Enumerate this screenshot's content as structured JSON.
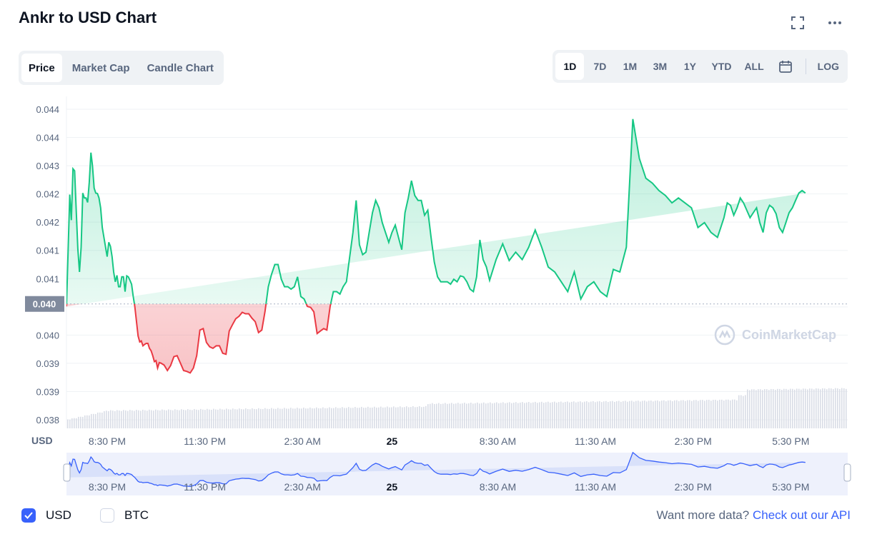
{
  "header": {
    "title": "Ankr to USD Chart"
  },
  "tabs": [
    {
      "label": "Price",
      "active": true
    },
    {
      "label": "Market Cap",
      "active": false
    },
    {
      "label": "Candle Chart",
      "active": false
    }
  ],
  "ranges": [
    {
      "label": "1D",
      "active": true
    },
    {
      "label": "7D",
      "active": false
    },
    {
      "label": "1M",
      "active": false
    },
    {
      "label": "3M",
      "active": false
    },
    {
      "label": "1Y",
      "active": false
    },
    {
      "label": "YTD",
      "active": false
    },
    {
      "label": "ALL",
      "active": false
    }
  ],
  "log_label": "LOG",
  "watermark": "CoinMarketCap",
  "footer": {
    "usd_label": "USD",
    "btc_label": "BTC",
    "usd_checked": true,
    "btc_checked": false,
    "more_text": "Want more data?",
    "api_link": "Check out our API"
  },
  "colors": {
    "up": "#16c784",
    "down": "#ea3943",
    "accent": "#3861fb"
  },
  "chart_data": {
    "type": "line",
    "currency_label": "USD",
    "y_tick_labels": [
      "0.044",
      "0.044",
      "0.043",
      "0.042",
      "0.042",
      "0.041",
      "0.041",
      "0.040",
      "0.040",
      "0.039",
      "0.039",
      "0.038"
    ],
    "ylim": [
      0.0378,
      0.0441
    ],
    "reference_price": 0.04015,
    "reference_label": "0.040",
    "x_tick_labels": [
      "8:30 PM",
      "11:30 PM",
      "2:30 AM",
      "25",
      "8:30 AM",
      "11:30 AM",
      "2:30 PM",
      "5:30 PM"
    ],
    "x_tick_hours": [
      1.25,
      4.25,
      7.25,
      10.0,
      13.25,
      16.25,
      19.25,
      22.25
    ],
    "x_range_hours": [
      0,
      24
    ],
    "price_hours": [
      0,
      0.1,
      0.15,
      0.2,
      0.25,
      0.3,
      0.35,
      0.4,
      0.45,
      0.5,
      0.55,
      0.6,
      0.65,
      0.7,
      0.75,
      0.8,
      0.85,
      0.9,
      0.95,
      1.0,
      1.05,
      1.1,
      1.15,
      1.2,
      1.25,
      1.3,
      1.35,
      1.4,
      1.45,
      1.5,
      1.55,
      1.6,
      1.65,
      1.7,
      1.75,
      1.8,
      1.85,
      1.9,
      1.95,
      2.0,
      2.05,
      2.1,
      2.15,
      2.2,
      2.25,
      2.3,
      2.35,
      2.4,
      2.45,
      2.5,
      2.55,
      2.6,
      2.65,
      2.7,
      2.75,
      2.8,
      2.85,
      2.9,
      3.0,
      3.1,
      3.2,
      3.3,
      3.4,
      3.5,
      3.6,
      3.7,
      3.8,
      3.9,
      4.0,
      4.1,
      4.2,
      4.3,
      4.4,
      4.5,
      4.6,
      4.7,
      4.8,
      4.9,
      5.0,
      5.1,
      5.2,
      5.3,
      5.4,
      5.5,
      5.6,
      5.7,
      5.8,
      5.9,
      6.0,
      6.1,
      6.2,
      6.3,
      6.4,
      6.5,
      6.6,
      6.7,
      6.8,
      6.9,
      7.0,
      7.1,
      7.2,
      7.3,
      7.4,
      7.5,
      7.6,
      7.7,
      7.8,
      7.9,
      8.0,
      8.1,
      8.2,
      8.3,
      8.4,
      8.5,
      8.6,
      8.7,
      8.8,
      8.9,
      9.0,
      9.1,
      9.2,
      9.3,
      9.4,
      9.5,
      9.6,
      9.7,
      9.8,
      9.9,
      10.0,
      10.1,
      10.2,
      10.3,
      10.4,
      10.5,
      10.6,
      10.7,
      10.8,
      10.9,
      11.0,
      11.1,
      11.2,
      11.3,
      11.4,
      11.5,
      11.6,
      11.7,
      11.8,
      11.9,
      12.0,
      12.1,
      12.2,
      12.3,
      12.4,
      12.5,
      12.6,
      12.7,
      12.8,
      12.9,
      13.0,
      13.2,
      13.4,
      13.6,
      13.8,
      14.0,
      14.2,
      14.4,
      14.6,
      14.8,
      15.0,
      15.2,
      15.4,
      15.6,
      15.8,
      16.0,
      16.2,
      16.4,
      16.6,
      16.8,
      17.0,
      17.2,
      17.4,
      17.6,
      17.8,
      18.0,
      18.2,
      18.4,
      18.6,
      18.8,
      19.0,
      19.2,
      19.4,
      19.6,
      19.8,
      20.0,
      20.1,
      20.2,
      20.3,
      20.4,
      20.5,
      20.6,
      20.7,
      20.8,
      20.9,
      21.0,
      21.1,
      21.2,
      21.3,
      21.4,
      21.5,
      21.6,
      21.7,
      21.8,
      21.9,
      22.0,
      22.1,
      22.2,
      22.3,
      22.4,
      22.5,
      22.6,
      22.7,
      22.8,
      22.9,
      23.0,
      23.1,
      23.2,
      23.3,
      23.4,
      23.5,
      23.6,
      23.7,
      23.8,
      23.9,
      24.0
    ],
    "prices": [
      0.0401,
      0.04237,
      0.04185,
      0.04289,
      0.04285,
      0.04203,
      0.04127,
      0.0408,
      0.0413,
      0.0424,
      0.0423,
      0.0423,
      0.04221,
      0.04262,
      0.04322,
      0.04295,
      0.0425,
      0.0424,
      0.04239,
      0.0423,
      0.0421,
      0.0417,
      0.0415,
      0.0413,
      0.04111,
      0.0414,
      0.04132,
      0.04111,
      0.0408,
      0.0406,
      0.04073,
      0.0405,
      0.0405,
      0.0407,
      0.0407,
      0.0404,
      0.04072,
      0.0407,
      0.04063,
      0.04055,
      0.0403,
      0.0401,
      0.0398,
      0.0395,
      0.03938,
      0.0394,
      0.0393,
      0.03933,
      0.03935,
      0.03935,
      0.03925,
      0.0392,
      0.0391,
      0.03898,
      0.039,
      0.03885,
      0.03896,
      0.03895,
      0.03891,
      0.0388,
      0.0389,
      0.03908,
      0.0391,
      0.03895,
      0.0388,
      0.03878,
      0.03875,
      0.03885,
      0.0391,
      0.03962,
      0.03965,
      0.03937,
      0.03928,
      0.03925,
      0.0393,
      0.0393,
      0.03915,
      0.03913,
      0.0396,
      0.03973,
      0.03985,
      0.0399,
      0.03998,
      0.03995,
      0.03995,
      0.03986,
      0.03979,
      0.03957,
      0.03962,
      0.04,
      0.0405,
      0.04075,
      0.04095,
      0.04095,
      0.04065,
      0.0405,
      0.0405,
      0.04045,
      0.0405,
      0.0407,
      0.0403,
      0.04025,
      0.0401,
      0.04008,
      0.03999,
      0.03955,
      0.0396,
      0.03965,
      0.03962,
      0.0401,
      0.0404,
      0.0404,
      0.04035,
      0.0405,
      0.0406,
      0.0411,
      0.0416,
      0.04225,
      0.04135,
      0.04115,
      0.0412,
      0.0416,
      0.042,
      0.04225,
      0.0421,
      0.0418,
      0.0416,
      0.0414,
      0.0416,
      0.04175,
      0.0415,
      0.04125,
      0.042,
      0.0423,
      0.04265,
      0.04235,
      0.04225,
      0.04225,
      0.04195,
      0.04205,
      0.0415,
      0.041,
      0.0407,
      0.0406,
      0.0406,
      0.0406,
      0.04055,
      0.04065,
      0.0406,
      0.04072,
      0.0407,
      0.0406,
      0.04045,
      0.0404,
      0.0407,
      0.04145,
      0.04105,
      0.0409,
      0.04063,
      0.04105,
      0.04137,
      0.04103,
      0.0412,
      0.04105,
      0.0413,
      0.04165,
      0.0413,
      0.0409,
      0.0408,
      0.0406,
      0.0404,
      0.0408,
      0.04025,
      0.0405,
      0.0406,
      0.0404,
      0.0403,
      0.04085,
      0.0408,
      0.0413,
      0.0439,
      0.0431,
      0.0427,
      0.0426,
      0.04245,
      0.04235,
      0.0422,
      0.0423,
      0.0422,
      0.0421,
      0.0417,
      0.0418,
      0.0416,
      0.0415,
      0.0417,
      0.0419,
      0.0422,
      0.04215,
      0.04195,
      0.0421,
      0.0423,
      0.0422,
      0.04205,
      0.0419,
      0.042,
      0.0421,
      0.0418,
      0.0416,
      0.042,
      0.04215,
      0.0421,
      0.04198,
      0.0417,
      0.0416,
      0.0418,
      0.042,
      0.0421,
      0.04225,
      0.0424,
      0.04245,
      0.0424
    ]
  }
}
